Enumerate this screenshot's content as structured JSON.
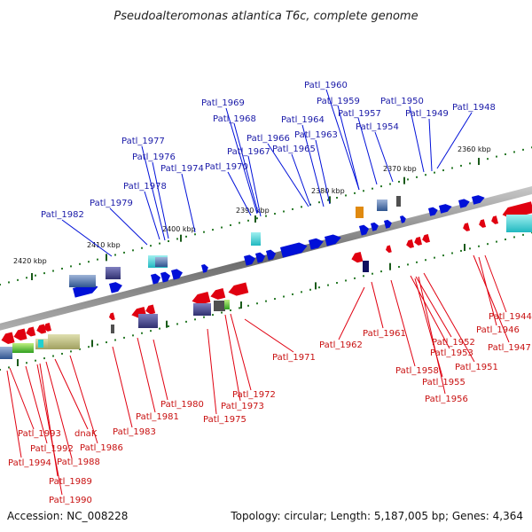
{
  "title": "Pseudoalteromonas atlantica T6c, complete genome",
  "footer": {
    "accession": "Accession: NC_008228",
    "summary": "Topology: circular; Length: 5,187,005 bp; Genes: 4,364"
  },
  "colors": {
    "forward_gene": "#0010d8",
    "reverse_gene": "#e00010",
    "forward_label": "#1a1aa8",
    "reverse_label": "#c81010",
    "backbone": "#8a8a8a",
    "tick_minor": "#2a7a2a",
    "tick_major": "#1a5a1a"
  },
  "scale_labels": [
    "2360 kbp",
    "2370 kbp",
    "2380 kbp",
    "2390 kbp",
    "2400 kbp",
    "2410 kbp",
    "2420 kbp"
  ],
  "forward_labels": [
    "Patl_1960",
    "Patl_1959",
    "Patl_1957",
    "Patl_1950",
    "Patl_1949",
    "Patl_1948",
    "Patl_1954",
    "Patl_1969",
    "Patl_1968",
    "Patl_1964",
    "Patl_1963",
    "Patl_1966",
    "Patl_1965",
    "Patl_1967",
    "Patl_1977",
    "Patl_1976",
    "Patl_1974",
    "Patl_1970",
    "Patl_1978",
    "Patl_1979",
    "Patl_1982"
  ],
  "reverse_labels": [
    "Patl_1944",
    "Patl_1946",
    "Patl_1947",
    "Patl_1952",
    "Patl_1953",
    "Patl_1951",
    "Patl_1958",
    "Patl_1955",
    "Patl_1956",
    "Patl_1961",
    "Patl_1962",
    "Patl_1971",
    "Patl_1972",
    "Patl_1973",
    "Patl_1975",
    "Patl_1980",
    "Patl_1981",
    "Patl_1983",
    "Patl_1986",
    "dnaK",
    "Patl_1993",
    "Patl_1992",
    "Patl_1988",
    "Patl_1994",
    "Patl_1989",
    "Patl_1990"
  ]
}
